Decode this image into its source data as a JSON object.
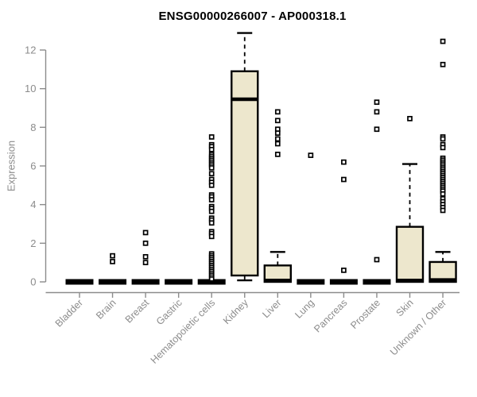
{
  "chart_data": {
    "type": "boxplot",
    "title": "ENSG00000266007 - AP000318.1",
    "ylabel": "Expression",
    "xlabel": "",
    "ylim": [
      0,
      12
    ],
    "yticks": [
      0,
      2,
      4,
      6,
      8,
      10,
      12
    ],
    "grid": false,
    "legend": "none",
    "colors": {
      "box_fill": "#ede7cd",
      "box_border": "#000000",
      "median": "#000000",
      "outlier": "#000000",
      "outlier_fill": "#ffffff",
      "axis": "#8c8c8c",
      "tick_label": "#8c8c8c",
      "title": "#000000",
      "background": "#ffffff"
    },
    "categories": [
      "Bladder",
      "Brain",
      "Breast",
      "Gastric",
      "Hematopoietic cells",
      "Kidney",
      "Liver",
      "Lung",
      "Pancreas",
      "Prostate",
      "Skin",
      "Unknown / Other"
    ],
    "series": [
      {
        "category": "Bladder",
        "collapsed": true,
        "median": 0,
        "q1": 0,
        "q3": 0,
        "whisker_low": 0,
        "whisker_high": 0,
        "outliers": []
      },
      {
        "category": "Brain",
        "collapsed": true,
        "median": 0,
        "q1": 0,
        "q3": 0,
        "whisker_low": 0,
        "whisker_high": 0,
        "outliers": [
          1.35,
          1.05
        ]
      },
      {
        "category": "Breast",
        "collapsed": true,
        "median": 0,
        "q1": 0,
        "q3": 0,
        "whisker_low": 0,
        "whisker_high": 0,
        "outliers": [
          2.55,
          2.0,
          1.3,
          1.0
        ]
      },
      {
        "category": "Gastric",
        "collapsed": true,
        "median": 0,
        "q1": 0,
        "q3": 0,
        "whisker_low": 0,
        "whisker_high": 0,
        "outliers": []
      },
      {
        "category": "Hematopoietic cells",
        "collapsed": true,
        "median": 0,
        "q1": 0,
        "q3": 0,
        "whisker_low": 0,
        "whisker_high": 0,
        "outliers": [
          7.5,
          7.1,
          7.0,
          6.85,
          6.6,
          6.5,
          6.4,
          6.3,
          6.2,
          6.1,
          6.0,
          5.9,
          5.6,
          5.3,
          5.15,
          5.0,
          4.5,
          4.4,
          4.25,
          3.9,
          3.8,
          3.65,
          3.3,
          3.2,
          3.05,
          2.6,
          2.5,
          2.35,
          1.45,
          1.35,
          1.25,
          1.15,
          1.05,
          0.95,
          0.85,
          0.75,
          0.65,
          0.55,
          0.45,
          0.35,
          0.25,
          0.15
        ]
      },
      {
        "category": "Kidney",
        "collapsed": false,
        "median": 9.45,
        "q1": 0.33,
        "q3": 10.9,
        "whisker_low": 0.08,
        "whisker_high": 12.88,
        "outliers": []
      },
      {
        "category": "Liver",
        "collapsed": false,
        "median": 0.07,
        "q1": 0,
        "q3": 0.85,
        "whisker_low": 0,
        "whisker_high": 1.55,
        "outliers": [
          8.8,
          8.35,
          7.9,
          7.7,
          7.4,
          7.15,
          6.6
        ]
      },
      {
        "category": "Lung",
        "collapsed": true,
        "median": 0,
        "q1": 0,
        "q3": 0,
        "whisker_low": 0,
        "whisker_high": 0,
        "outliers": [
          6.55
        ]
      },
      {
        "category": "Pancreas",
        "collapsed": true,
        "median": 0,
        "q1": 0,
        "q3": 0,
        "whisker_low": 0,
        "whisker_high": 0,
        "outliers": [
          6.2,
          5.3,
          0.6
        ]
      },
      {
        "category": "Prostate",
        "collapsed": true,
        "median": 0,
        "q1": 0,
        "q3": 0,
        "whisker_low": 0,
        "whisker_high": 0,
        "outliers": [
          9.3,
          8.8,
          7.9,
          1.15
        ]
      },
      {
        "category": "Skin",
        "collapsed": false,
        "median": 0.07,
        "q1": 0,
        "q3": 2.85,
        "whisker_low": 0,
        "whisker_high": 6.1,
        "outliers": [
          8.45
        ]
      },
      {
        "category": "Unknown / Other",
        "collapsed": false,
        "median": 0.1,
        "q1": 0,
        "q3": 1.03,
        "whisker_low": 0,
        "whisker_high": 1.55,
        "outliers": [
          12.45,
          11.25,
          7.5,
          7.4,
          7.1,
          6.95,
          6.4,
          6.3,
          6.2,
          6.1,
          6.0,
          5.9,
          5.8,
          5.7,
          5.6,
          5.5,
          5.4,
          5.3,
          5.2,
          5.1,
          5.0,
          4.9,
          4.8,
          4.7,
          4.55,
          4.3,
          4.15,
          4.0,
          3.85,
          3.7
        ]
      }
    ]
  }
}
